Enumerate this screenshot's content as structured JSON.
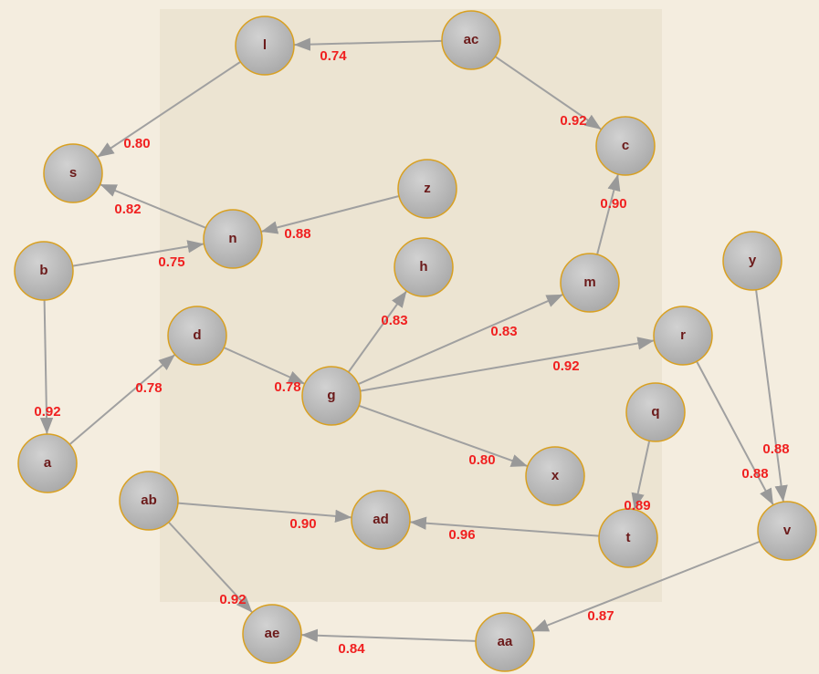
{
  "nodes": [
    {
      "label": "l"
    },
    {
      "label": "ac"
    },
    {
      "label": "s"
    },
    {
      "label": "c"
    },
    {
      "label": "z"
    },
    {
      "label": "n"
    },
    {
      "label": "b"
    },
    {
      "label": "h"
    },
    {
      "label": "m"
    },
    {
      "label": "y"
    },
    {
      "label": "d"
    },
    {
      "label": "r"
    },
    {
      "label": "g"
    },
    {
      "label": "q"
    },
    {
      "label": "a"
    },
    {
      "label": "x"
    },
    {
      "label": "ab"
    },
    {
      "label": "ad"
    },
    {
      "label": "t"
    },
    {
      "label": "v"
    },
    {
      "label": "aa"
    },
    {
      "label": "ae"
    }
  ],
  "edges": [
    {
      "from": "ac",
      "to": "l",
      "label": "0.74"
    },
    {
      "from": "ac",
      "to": "c",
      "label": "0.92"
    },
    {
      "from": "l",
      "to": "s",
      "label": "0.80"
    },
    {
      "from": "n",
      "to": "s",
      "label": "0.82"
    },
    {
      "from": "z",
      "to": "n",
      "label": "0.88"
    },
    {
      "from": "b",
      "to": "n",
      "label": "0.75"
    },
    {
      "from": "m",
      "to": "c",
      "label": "0.90"
    },
    {
      "from": "b",
      "to": "a",
      "label": "0.92"
    },
    {
      "from": "a",
      "to": "d",
      "label": "0.78"
    },
    {
      "from": "d",
      "to": "g",
      "label": "0.78"
    },
    {
      "from": "g",
      "to": "h",
      "label": "0.83"
    },
    {
      "from": "g",
      "to": "m",
      "label": "0.83"
    },
    {
      "from": "g",
      "to": "r",
      "label": "0.92"
    },
    {
      "from": "g",
      "to": "x",
      "label": "0.80"
    },
    {
      "from": "r",
      "to": "v",
      "label": "0.88"
    },
    {
      "from": "y",
      "to": "v",
      "label": "0.88"
    },
    {
      "from": "q",
      "to": "t",
      "label": "0.89"
    },
    {
      "from": "ab",
      "to": "ad",
      "label": "0.90"
    },
    {
      "from": "t",
      "to": "ad",
      "label": "0.96"
    },
    {
      "from": "ab",
      "to": "ae",
      "label": "0.92"
    },
    {
      "from": "v",
      "to": "aa",
      "label": "0.87"
    },
    {
      "from": "aa",
      "to": "ae",
      "label": "0.84"
    }
  ]
}
